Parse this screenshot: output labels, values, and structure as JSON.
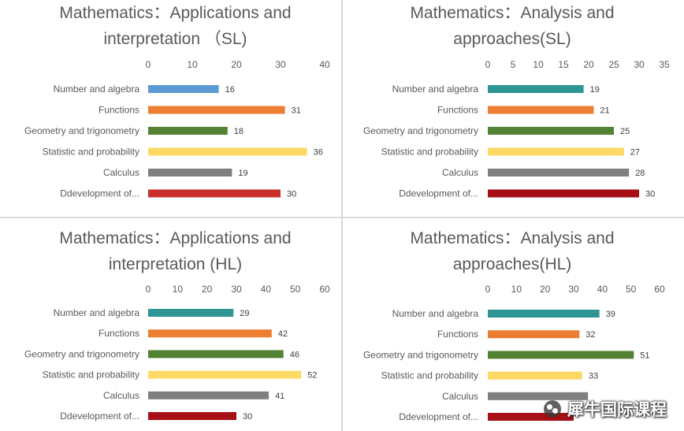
{
  "chart_data": [
    {
      "type": "bar",
      "title_lines": [
        "Mathematics：Applications and",
        "interpretation （SL)"
      ],
      "categories": [
        "Number and algebra",
        "Functions",
        "Geometry and trigonometry",
        "Statistic and probability",
        "Calculus",
        "Ddevelopment of..."
      ],
      "values": [
        16,
        31,
        18,
        36,
        19,
        30
      ],
      "xlim": [
        0,
        40
      ],
      "ticks": [
        0,
        10,
        20,
        30,
        40
      ],
      "colors": [
        "#5b9bd5",
        "#ed7d31",
        "#548235",
        "#ffd966",
        "#7f7f7f",
        "#c9302c"
      ]
    },
    {
      "type": "bar",
      "title_lines": [
        "Mathematics：Analysis and",
        "approaches(SL)"
      ],
      "categories": [
        "Number and algebra",
        "Functions",
        "Geometry and trigonometry",
        "Statistic and probability",
        "Calculus",
        "Ddevelopment of..."
      ],
      "values": [
        19,
        21,
        25,
        27,
        28,
        30
      ],
      "xlim": [
        0,
        35
      ],
      "ticks": [
        0,
        5,
        10,
        15,
        20,
        25,
        30,
        35
      ],
      "colors": [
        "#2e9494",
        "#ed7d31",
        "#548235",
        "#ffd966",
        "#7f7f7f",
        "#a50f15"
      ]
    },
    {
      "type": "bar",
      "title_lines": [
        "Mathematics：Applications and",
        "interpretation (HL)"
      ],
      "categories": [
        "Number and algebra",
        "Functions",
        "Geometry and trigonometry",
        "Statistic and probability",
        "Calculus",
        "Ddevelopment of..."
      ],
      "values": [
        29,
        42,
        46,
        52,
        41,
        30
      ],
      "xlim": [
        0,
        60
      ],
      "ticks": [
        0,
        10,
        20,
        30,
        40,
        50,
        60
      ],
      "colors": [
        "#2e9494",
        "#ed7d31",
        "#548235",
        "#ffd966",
        "#7f7f7f",
        "#a50f15"
      ]
    },
    {
      "type": "bar",
      "title_lines": [
        "Mathematics：Analysis and",
        "approaches(HL)"
      ],
      "categories": [
        "Number and algebra",
        "Functions",
        "Geometry and trigonometry",
        "Statistic and probability",
        "Calculus",
        "Ddevelopment of..."
      ],
      "values": [
        39,
        32,
        51,
        33,
        35,
        30
      ],
      "value_labels": [
        "39",
        "32",
        "51",
        "33",
        "",
        ""
      ],
      "xlim": [
        0,
        60
      ],
      "ticks": [
        0,
        10,
        20,
        30,
        40,
        50,
        60
      ],
      "colors": [
        "#2e9494",
        "#ed7d31",
        "#548235",
        "#ffd966",
        "#7f7f7f",
        "#a50f15"
      ]
    }
  ],
  "watermark": {
    "text": "犀牛国际课程",
    "icon": "wechat-icon"
  }
}
